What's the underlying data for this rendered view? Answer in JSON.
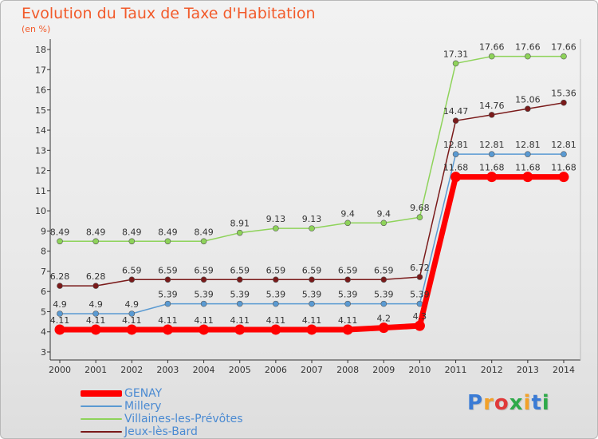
{
  "header": {
    "title": "Evolution du Taux de Taxe d'Habitation",
    "unit": "(en %)"
  },
  "logo": {
    "text": "Proxiti",
    "colors": [
      "#3a7bd5",
      "#f2a12a",
      "#e03a3a",
      "#2faa4a",
      "#f2a12a",
      "#3a7bd5",
      "#2faa4a"
    ]
  },
  "chart_data": {
    "type": "line",
    "title": "Evolution du Taux de Taxe d'Habitation",
    "ylabel": "(en %)",
    "xlabel": "",
    "x": [
      2000,
      2001,
      2002,
      2003,
      2004,
      2005,
      2006,
      2007,
      2008,
      2009,
      2010,
      2011,
      2012,
      2013,
      2014
    ],
    "ylim": [
      3,
      18
    ],
    "yticks": [
      3,
      4,
      5,
      6,
      7,
      8,
      9,
      10,
      11,
      12,
      13,
      14,
      15,
      16,
      17,
      18
    ],
    "grid": false,
    "legend": "bottom-left",
    "series": [
      {
        "name": "GENAY",
        "color": "#ff0000",
        "values": [
          4.11,
          4.11,
          4.11,
          4.11,
          4.11,
          4.11,
          4.11,
          4.11,
          4.11,
          4.2,
          4.3,
          11.68,
          11.68,
          11.68,
          11.68
        ],
        "labels": [
          "4.11",
          "4.11",
          "4.11",
          "4.11",
          "4.11",
          "4.11",
          "4.11",
          "4.11",
          "4.11",
          "4.2",
          "4.3",
          "11.68",
          "11.68",
          "11.68",
          "11.68"
        ]
      },
      {
        "name": "Millery",
        "color": "#5a9ad2",
        "values": [
          4.9,
          4.9,
          4.9,
          5.39,
          5.39,
          5.39,
          5.39,
          5.39,
          5.39,
          5.39,
          5.39,
          12.81,
          12.81,
          12.81,
          12.81
        ],
        "labels": [
          "4.9",
          "4.9",
          "4.9",
          "5.39",
          "5.39",
          "5.39",
          "5.39",
          "5.39",
          "5.39",
          "5.39",
          "5.39",
          "12.81",
          "12.81",
          "12.81",
          "12.81"
        ]
      },
      {
        "name": "Villaines-les-Prévôtes",
        "color": "#8ed35a",
        "values": [
          8.49,
          8.49,
          8.49,
          8.49,
          8.49,
          8.91,
          9.13,
          9.13,
          9.4,
          9.4,
          9.68,
          17.31,
          17.66,
          17.66,
          17.66
        ],
        "labels": [
          "8.49",
          "8.49",
          "8.49",
          "8.49",
          "8.49",
          "8.91",
          "9.13",
          "9.13",
          "9.4",
          "9.4",
          "9.68",
          "17.31",
          "17.66",
          "17.66",
          "17.66"
        ]
      },
      {
        "name": "Jeux-lès-Bard",
        "color": "#7a1a1a",
        "values": [
          6.28,
          6.28,
          6.59,
          6.59,
          6.59,
          6.59,
          6.59,
          6.59,
          6.59,
          6.59,
          6.72,
          14.47,
          14.76,
          15.06,
          15.36
        ],
        "labels": [
          "6.28",
          "6.28",
          "6.59",
          "6.59",
          "6.59",
          "6.59",
          "6.59",
          "6.59",
          "6.59",
          "6.59",
          "6.72",
          "14.47",
          "14.76",
          "15.06",
          "15.36"
        ]
      }
    ]
  }
}
